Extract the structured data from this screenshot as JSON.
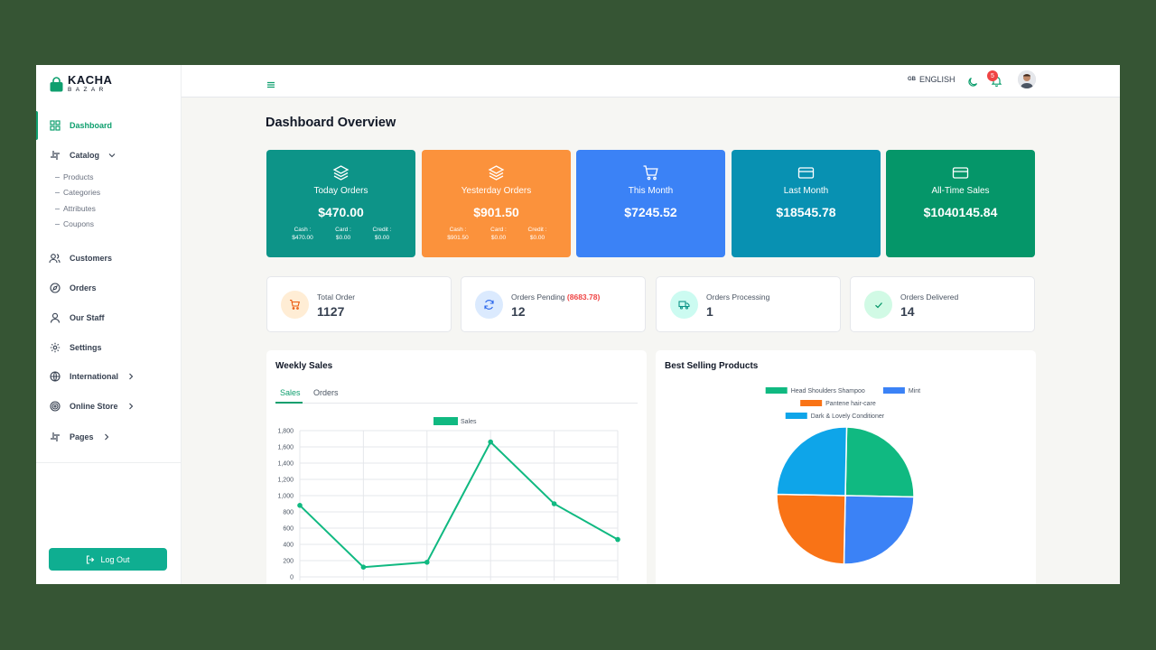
{
  "brand": {
    "name": "KACHA",
    "sub": "BAZAR",
    "color": "#0e9f6e"
  },
  "sidebar": {
    "items": [
      {
        "label": "Dashboard",
        "icon": "grid-icon",
        "active": true
      },
      {
        "label": "Catalog",
        "icon": "slack-icon"
      },
      {
        "label": "Customers",
        "icon": "users-icon"
      },
      {
        "label": "Orders",
        "icon": "compass-icon"
      },
      {
        "label": "Our Staff",
        "icon": "user-icon"
      },
      {
        "label": "Settings",
        "icon": "settings-icon"
      },
      {
        "label": "International",
        "icon": "globe-icon"
      },
      {
        "label": "Online Store",
        "icon": "target-icon"
      },
      {
        "label": "Pages",
        "icon": "slack-icon"
      }
    ],
    "catalog_sub": [
      "Products",
      "Categories",
      "Attributes",
      "Coupons"
    ],
    "logout_label": "Log Out"
  },
  "topbar": {
    "lang_flag": "GB",
    "lang_label": "ENGLISH",
    "notification_count": "5"
  },
  "page_title": "Dashboard Overview",
  "cards": [
    {
      "title": "Today Orders",
      "value": "$470.00",
      "color": "#0d9488",
      "breakdown": [
        {
          "label": "Cash :",
          "value": "$470.00"
        },
        {
          "label": "Card :",
          "value": "$0.00"
        },
        {
          "label": "Credit :",
          "value": "$0.00"
        }
      ]
    },
    {
      "title": "Yesterday Orders",
      "value": "$901.50",
      "color": "#fb923c",
      "breakdown": [
        {
          "label": "Cash :",
          "value": "$901.50"
        },
        {
          "label": "Card :",
          "value": "$0.00"
        },
        {
          "label": "Credit :",
          "value": "$0.00"
        }
      ]
    },
    {
      "title": "This Month",
      "value": "$7245.52",
      "color": "#3b82f6"
    },
    {
      "title": "Last Month",
      "value": "$18545.78",
      "color": "#0891b2"
    },
    {
      "title": "All-Time Sales",
      "value": "$1040145.84",
      "color": "#059669"
    }
  ],
  "stats": [
    {
      "label": "Total Order",
      "value": "1127",
      "icon": "cart-icon",
      "bg": "#ffedd5",
      "fg": "#ea580c"
    },
    {
      "label": "Orders Pending",
      "extra": "(8683.78)",
      "value": "12",
      "icon": "refresh-icon",
      "bg": "#dbeafe",
      "fg": "#2563eb"
    },
    {
      "label": "Orders Processing",
      "value": "1",
      "icon": "truck-icon",
      "bg": "#ccfbf1",
      "fg": "#0d9488"
    },
    {
      "label": "Orders Delivered",
      "value": "14",
      "icon": "check-icon",
      "bg": "#d1fae5",
      "fg": "#059669"
    }
  ],
  "weekly_sales": {
    "title": "Weekly Sales",
    "tabs": [
      "Sales",
      "Orders"
    ]
  },
  "best_selling": {
    "title": "Best Selling Products"
  },
  "chart_data": [
    {
      "type": "line",
      "x": [
        "",
        "",
        "",
        "",
        "",
        ""
      ],
      "series": [
        {
          "name": "Sales",
          "values": [
            880,
            120,
            180,
            1660,
            900,
            460
          ],
          "color": "#10b981"
        }
      ],
      "yticks": [
        "0",
        "200",
        "400",
        "600",
        "800",
        "1,000",
        "1,200",
        "1,400",
        "1,600",
        "1,800"
      ],
      "ylim": [
        0,
        1800
      ],
      "grid": true,
      "legend": "top"
    },
    {
      "type": "pie",
      "labels": [
        "Head Shoulders Shampoo",
        "Mint",
        "Pantene hair-care",
        "Dark & Lovely Conditioner"
      ],
      "values": [
        25,
        25,
        25,
        25
      ],
      "colors": [
        "#10b981",
        "#3b82f6",
        "#f97316",
        "#0ea5e9"
      ],
      "legend": "top"
    }
  ]
}
